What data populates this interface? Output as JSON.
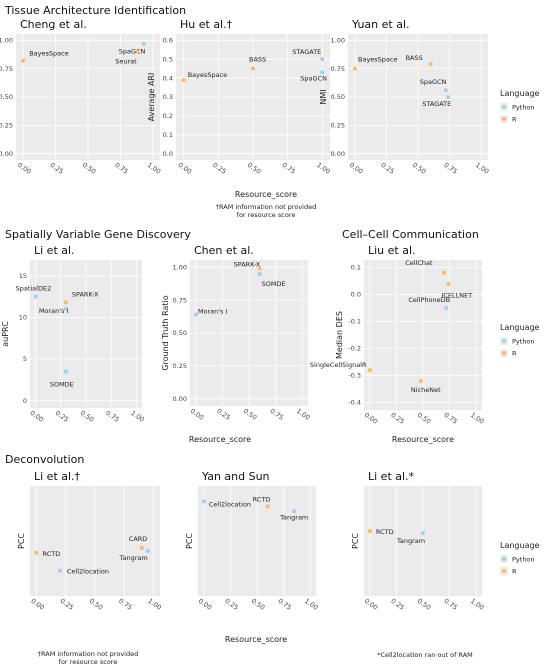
{
  "sections": [
    {
      "title": "Tissue Architecture Identification",
      "xlabel": "Resource_score",
      "footnote": "†RAM information not provided\nfor resource score"
    },
    {
      "title": "Spatially Variable Gene Discovery",
      "xlabel": "Resource_score",
      "footnote": ""
    },
    {
      "title": "Cell–Cell Communication",
      "xlabel": "Resource_score",
      "footnote": ""
    },
    {
      "title": "Deconvolution",
      "xlabel": "Resource_score",
      "footnote": "†RAM information not provided\nfor resource score"
    }
  ],
  "legend": {
    "title": "Language",
    "items": [
      {
        "label": "Python",
        "color": "#a6cee3"
      },
      {
        "label": "R",
        "color": "#fdb863"
      }
    ]
  },
  "notes": {
    "cell_comm_xlabel": "Resource_score",
    "decon_right_note": "*Cell2location ran out of RAM"
  },
  "chart_data": [
    {
      "type": "scatter",
      "title": "Cheng  et  al.",
      "xlabel": "",
      "ylabel": "ARI",
      "xlim": [
        0,
        1
      ],
      "ylim": [
        0,
        1
      ],
      "xticks": [
        "0.00",
        "0.25",
        "0.50",
        "0.75",
        "1.00"
      ],
      "yticks": [
        "0.00",
        "0.25",
        "0.50",
        "0.75",
        "1.00"
      ],
      "points": [
        {
          "name": "SpaGCN",
          "x": 0.93,
          "y": 0.97,
          "lang": "Python"
        },
        {
          "name": "Seurat",
          "x": 0.88,
          "y": 0.9,
          "lang": "R"
        },
        {
          "name": "BayesSpace",
          "x": 0.0,
          "y": 0.82,
          "lang": "R"
        }
      ]
    },
    {
      "type": "scatter",
      "title": "Hu  et  al.†",
      "xlabel": "Resource_score",
      "ylabel": "Average ARI",
      "xlim": [
        0,
        1
      ],
      "ylim": [
        0,
        0.6
      ],
      "xticks": [
        "0.00",
        "0.25",
        "0.50",
        "0.75",
        "1.00"
      ],
      "yticks": [
        "0.0",
        "0.1",
        "0.2",
        "0.3",
        "0.4",
        "0.5",
        "0.6"
      ],
      "points": [
        {
          "name": "BayesSpace",
          "x": 0.0,
          "y": 0.39,
          "lang": "R"
        },
        {
          "name": "BASS",
          "x": 0.5,
          "y": 0.45,
          "lang": "R"
        },
        {
          "name": "STAGATE",
          "x": 1.0,
          "y": 0.5,
          "lang": "Python"
        },
        {
          "name": "SpaGCN",
          "x": 1.0,
          "y": 0.43,
          "lang": "Python"
        }
      ]
    },
    {
      "type": "scatter",
      "title": "Yuan  et  al.",
      "xlabel": "",
      "ylabel": "NMI",
      "xlim": [
        0,
        1
      ],
      "ylim": [
        0,
        1
      ],
      "xticks": [
        "0.00",
        "0.25",
        "0.50",
        "0.75",
        "1.00"
      ],
      "yticks": [
        "0.00",
        "0.25",
        "0.50",
        "0.75",
        "1.00"
      ],
      "points": [
        {
          "name": "BayesSpace",
          "x": 0.0,
          "y": 0.75,
          "lang": "R"
        },
        {
          "name": "BASS",
          "x": 0.6,
          "y": 0.79,
          "lang": "R"
        },
        {
          "name": "SpaGCN",
          "x": 0.72,
          "y": 0.56,
          "lang": "Python"
        },
        {
          "name": "STAGATE",
          "x": 0.74,
          "y": 0.5,
          "lang": "Python"
        }
      ]
    },
    {
      "type": "scatter",
      "title": "Li  et  al.",
      "xlabel": "",
      "ylabel": "auPRC",
      "xlim": [
        0,
        1
      ],
      "ylim": [
        0,
        16
      ],
      "xticks": [
        "0.00",
        "0.25",
        "0.50",
        "0.75",
        "1.00"
      ],
      "yticks": [
        "0",
        "5",
        "10",
        "15"
      ],
      "points": [
        {
          "name": "SpatialDE2",
          "x": 0.0,
          "y": 12.5,
          "lang": "Python"
        },
        {
          "name": "SPARK-X",
          "x": 0.3,
          "y": 11.8,
          "lang": "R"
        },
        {
          "name": "Moran's I",
          "x": 0.3,
          "y": 11.0,
          "lang": "Python"
        },
        {
          "name": "SOMDE",
          "x": 0.3,
          "y": 3.5,
          "lang": "Python"
        }
      ]
    },
    {
      "type": "scatter",
      "title": "Chen  et  al.",
      "xlabel": "",
      "ylabel": "Ground Truth Ratio",
      "xlim": [
        0,
        1
      ],
      "ylim": [
        0,
        1
      ],
      "xticks": [
        "0.00",
        "0.25",
        "0.50",
        "0.75",
        "1.00"
      ],
      "yticks": [
        "0.00",
        "0.25",
        "0.50",
        "0.75",
        "1.00"
      ],
      "points": [
        {
          "name": "SPARK-X",
          "x": 0.6,
          "y": 0.99,
          "lang": "R"
        },
        {
          "name": "SOMDE",
          "x": 0.6,
          "y": 0.95,
          "lang": "Python"
        },
        {
          "name": "Moran's I",
          "x": 0.0,
          "y": 0.64,
          "lang": "Python"
        }
      ]
    },
    {
      "type": "scatter",
      "title": "Liu  et  al.",
      "xlabel": "Resource_score",
      "ylabel": "Median DES",
      "xlim": [
        0,
        1
      ],
      "ylim": [
        -0.4,
        0.1
      ],
      "xticks": [
        "0.00",
        "0.25",
        "0.50",
        "0.75",
        "1.00"
      ],
      "yticks": [
        "-0.4",
        "-0.3",
        "-0.2",
        "-0.1",
        "0.0",
        "0.1"
      ],
      "points": [
        {
          "name": "CellChat",
          "x": 0.7,
          "y": 0.08,
          "lang": "R"
        },
        {
          "name": "ICELLNET",
          "x": 0.74,
          "y": 0.04,
          "lang": "R"
        },
        {
          "name": "CellPhoneDB",
          "x": 0.72,
          "y": -0.05,
          "lang": "Python"
        },
        {
          "name": "SingleCellSignalR",
          "x": 0.0,
          "y": -0.28,
          "lang": "R"
        },
        {
          "name": "NicheNet",
          "x": 0.48,
          "y": -0.32,
          "lang": "R"
        }
      ]
    },
    {
      "type": "scatter",
      "title": "Li  et  al.†",
      "xlabel": "",
      "ylabel": "PCC",
      "xlim": [
        0,
        1
      ],
      "ylim": [
        0,
        1
      ],
      "xticks": [
        "0.00",
        "0.25",
        "0.50",
        "0.75",
        "1.00"
      ],
      "yticks": [],
      "points": [
        {
          "name": "RCTD",
          "x": 0.0,
          "y": 0.38,
          "lang": "R"
        },
        {
          "name": "Cell2location",
          "x": 0.2,
          "y": 0.2,
          "lang": "Python"
        },
        {
          "name": "CARD",
          "x": 0.9,
          "y": 0.43,
          "lang": "R"
        },
        {
          "name": "Tangram",
          "x": 0.95,
          "y": 0.4,
          "lang": "Python"
        }
      ]
    },
    {
      "type": "scatter",
      "title": "Yan and Sun",
      "xlabel": "Resource_score",
      "ylabel": "PCC",
      "xlim": [
        0,
        1
      ],
      "ylim": [
        0,
        1
      ],
      "xticks": [
        "0.00",
        "0.25",
        "0.50",
        "0.75",
        "1.00"
      ],
      "yticks": [],
      "points": [
        {
          "name": "Cell2location",
          "x": 0.0,
          "y": 0.9,
          "lang": "Python"
        },
        {
          "name": "RCTD",
          "x": 0.6,
          "y": 0.85,
          "lang": "R"
        },
        {
          "name": "Tangram",
          "x": 0.85,
          "y": 0.8,
          "lang": "Python"
        }
      ]
    },
    {
      "type": "scatter",
      "title": "Li et al.*",
      "xlabel": "",
      "ylabel": "PCC",
      "xlim": [
        0,
        1
      ],
      "ylim": [
        0,
        1
      ],
      "xticks": [
        "0.00",
        "0.25",
        "0.50",
        "0.75",
        "1.00"
      ],
      "yticks": [],
      "points": [
        {
          "name": "RCTD",
          "x": 0.0,
          "y": 0.6,
          "lang": "R"
        },
        {
          "name": "Tangram",
          "x": 0.5,
          "y": 0.58,
          "lang": "Python"
        }
      ]
    }
  ]
}
